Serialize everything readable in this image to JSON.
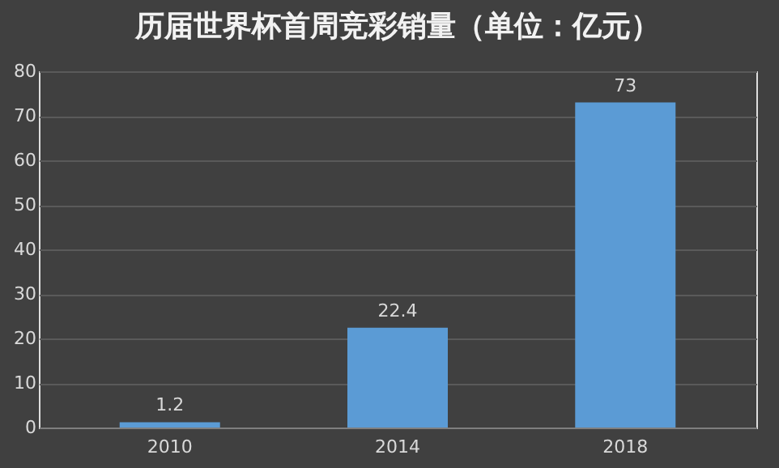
{
  "chart_data": {
    "type": "bar",
    "title": "历届世界杯首周竞彩销量（单位：亿元）",
    "categories": [
      "2010",
      "2014",
      "2018"
    ],
    "values": [
      1.2,
      22.4,
      73
    ],
    "color": "#5b9bd5",
    "ylim": [
      0,
      80
    ],
    "yticks": [
      0,
      10,
      20,
      30,
      40,
      50,
      60,
      70,
      80
    ],
    "grid": "y",
    "data_labels": true
  }
}
